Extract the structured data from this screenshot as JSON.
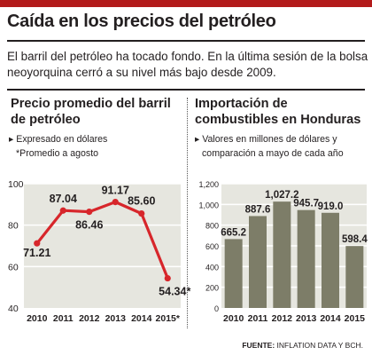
{
  "header": {
    "title": "Caída en los precios del petróleo",
    "lead": "El barril del petróleo ha tocado fondo. En la última sesión de la bolsa neoyorquina cerró a su nivel más bajo desde 2009."
  },
  "left_panel": {
    "title": "Precio promedio del barril de petróleo",
    "note1": "▸ Expresado en dólares",
    "note2": "*Promedio a agosto"
  },
  "right_panel": {
    "title": "Importación de combustibles en Honduras",
    "note1": "▸ Valores en millones de dólares y",
    "note2": "comparación a mayo de cada año"
  },
  "footer": {
    "label": "FUENTE:",
    "source": "INFLATION DATA Y BCH."
  },
  "colors": {
    "accent": "#b31b1b",
    "line": "#d7262b",
    "bar": "#7d7d68",
    "plot_bg": "#e6e6df",
    "grid": "#ffffff"
  },
  "chart_data": [
    {
      "type": "line",
      "categories": [
        "2010",
        "2011",
        "2012",
        "2013",
        "2014",
        "2015*"
      ],
      "values": [
        71.21,
        87.04,
        86.46,
        91.17,
        85.6,
        54.34
      ],
      "labels": [
        "71.21",
        "87.04",
        "86.46",
        "91.17",
        "85.60",
        "54.34*"
      ],
      "yticks": [
        "40",
        "60",
        "80",
        "100"
      ],
      "ylim": [
        40,
        100
      ],
      "grid": true
    },
    {
      "type": "bar",
      "categories": [
        "2010",
        "2011",
        "2012",
        "2013",
        "2014",
        "2015"
      ],
      "values": [
        665.2,
        887.6,
        1027.2,
        945.7,
        919.0,
        598.4
      ],
      "labels": [
        "665.2",
        "887.6",
        "1,027.2",
        "945.7",
        "919.0",
        "598.4"
      ],
      "yticks": [
        "0",
        "200",
        "400",
        "600",
        "800",
        "1,000",
        "1,200"
      ],
      "ylim": [
        0,
        1200
      ],
      "grid": true
    }
  ]
}
